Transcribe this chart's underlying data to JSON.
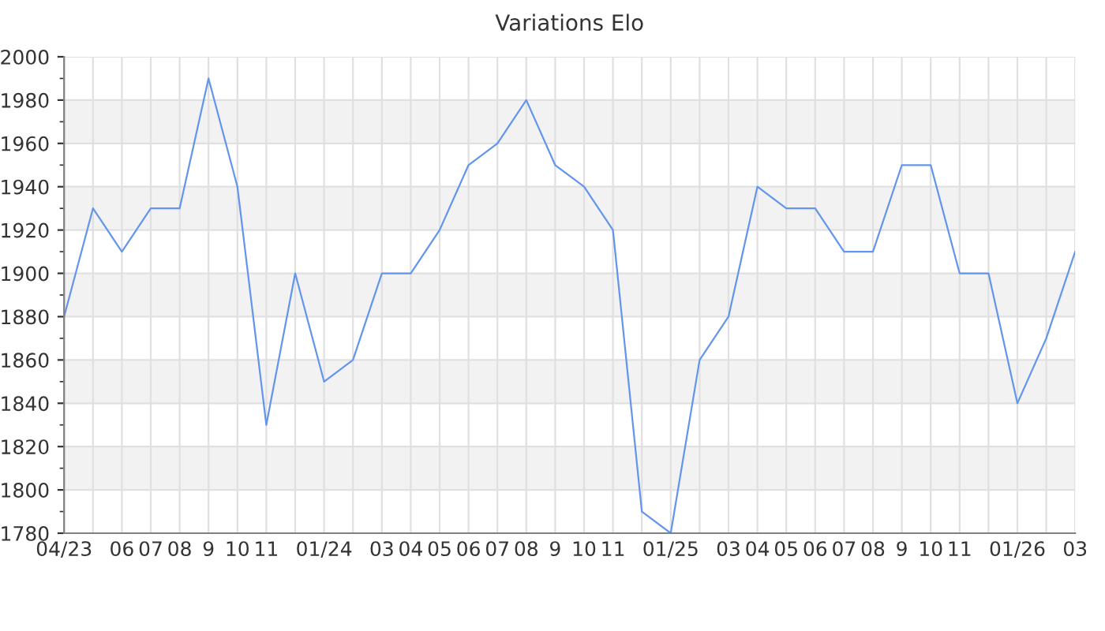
{
  "chart_data": {
    "type": "line",
    "title": "Variations Elo",
    "categories": [
      "04/23",
      null,
      "06",
      "07",
      "08",
      "9",
      "10",
      "11",
      null,
      "01/24",
      null,
      "03",
      "04",
      "05",
      "06",
      "07",
      "08",
      "9",
      "10",
      "11",
      null,
      "01/25",
      null,
      "03",
      "04",
      "05",
      "06",
      "07",
      "08",
      "9",
      "10",
      "11",
      null,
      "01/26",
      null,
      "03"
    ],
    "series": [
      {
        "color": "#6495ed",
        "values": [
          1880,
          1930,
          1910,
          1930,
          1930,
          1990,
          1940,
          1830,
          1900,
          1850,
          1860,
          1900,
          1900,
          1920,
          1950,
          1960,
          1980,
          1950,
          1940,
          1920,
          1790,
          1780,
          1860,
          1880,
          1940,
          1930,
          1930,
          1910,
          1910,
          1950,
          1950,
          1900,
          1900,
          1840,
          1870,
          1910
        ]
      }
    ],
    "ylim": [
      1780,
      2000
    ],
    "yticks": [
      1780,
      1800,
      1820,
      1840,
      1860,
      1880,
      1900,
      1920,
      1940,
      1960,
      1980,
      2000
    ],
    "bands": [
      {
        "axis": "y",
        "from": 1800,
        "to": 1820,
        "color": "#f2f2f2"
      },
      {
        "axis": "y",
        "from": 1840,
        "to": 1860,
        "color": "#f2f2f2"
      },
      {
        "axis": "y",
        "from": 1880,
        "to": 1900,
        "color": "#f2f2f2"
      },
      {
        "axis": "y",
        "from": 1920,
        "to": 1940,
        "color": "#f2f2f2"
      },
      {
        "axis": "y",
        "from": 1960,
        "to": 1980,
        "color": "#f2f2f2"
      }
    ],
    "grid": true,
    "legend": false,
    "marker": "none",
    "line_style": "solid"
  }
}
